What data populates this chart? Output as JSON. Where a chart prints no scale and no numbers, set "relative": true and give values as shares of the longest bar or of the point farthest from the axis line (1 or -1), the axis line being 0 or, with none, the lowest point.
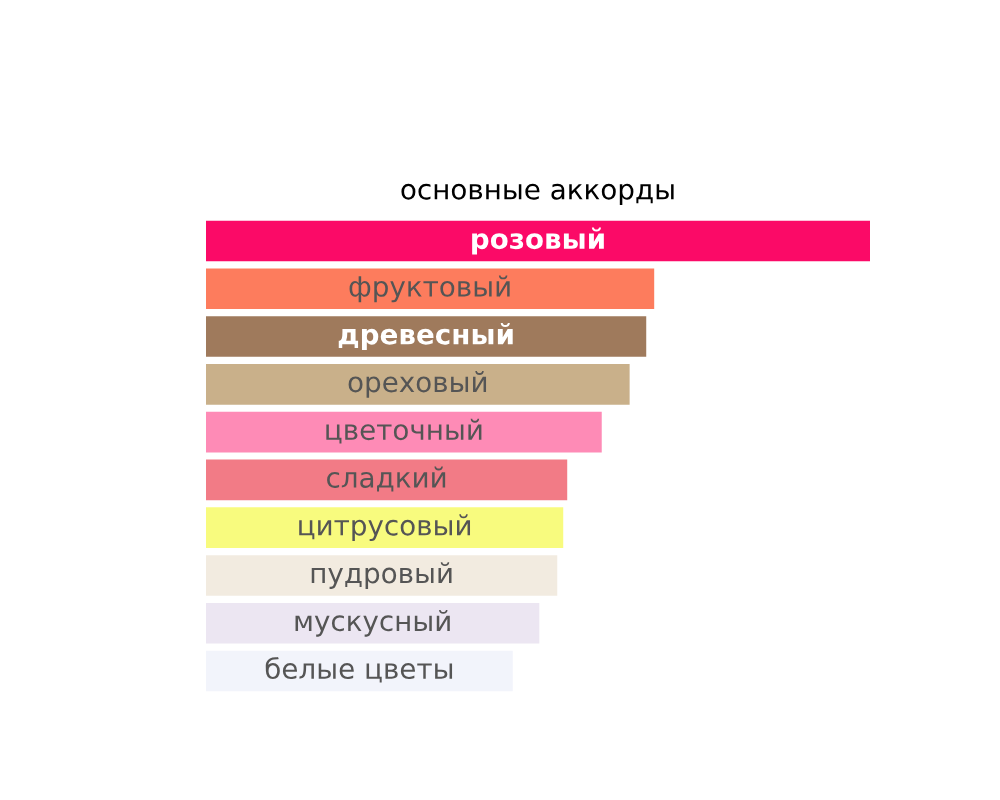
{
  "chart_data": {
    "type": "bar",
    "orientation": "horizontal",
    "relative": true,
    "title": "основные аккорды",
    "categories": [
      "розовый",
      "фруктовый",
      "древесный",
      "ореховый",
      "цветочный",
      "сладкий",
      "цитрусовый",
      "пудровый",
      "мускусный",
      "белые цветы"
    ],
    "values": [
      1,
      0.675,
      0.663,
      0.638,
      0.596,
      0.544,
      0.538,
      0.529,
      0.502,
      0.462
    ],
    "colors": [
      "#fb0a67",
      "#fd7c5d",
      "#9f7a5c",
      "#c9b08a",
      "#fe8bb6",
      "#f27b86",
      "#f8fb7e",
      "#f2ebe0",
      "#ece6f2",
      "#f2f4fb"
    ]
  }
}
